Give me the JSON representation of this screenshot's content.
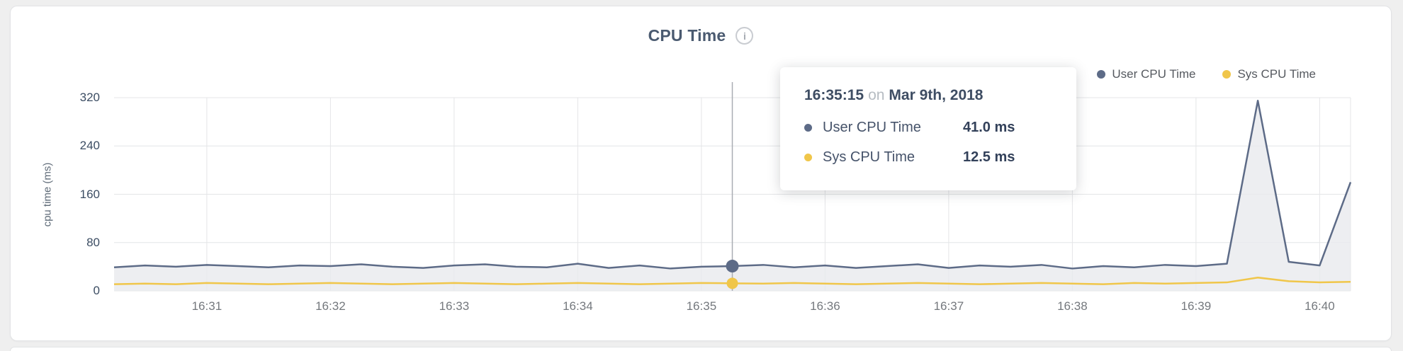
{
  "card": {
    "title": "CPU Time",
    "info_glyph": "i"
  },
  "legend": {
    "items": [
      {
        "label": "User CPU Time"
      },
      {
        "label": "Sys CPU Time"
      }
    ]
  },
  "tooltip": {
    "time": "16:35:15",
    "connector": "on",
    "date": "Mar 9th, 2018",
    "rows": [
      {
        "label": "User CPU Time",
        "value": "41.0 ms"
      },
      {
        "label": "Sys CPU Time",
        "value": "12.5 ms"
      }
    ]
  },
  "chart_data": {
    "type": "line",
    "title": "CPU Time",
    "xlabel": "",
    "ylabel": "cpu time (ms)",
    "ylim": [
      0,
      320
    ],
    "yticks": [
      0,
      80,
      160,
      240,
      320
    ],
    "xticks": [
      "16:31",
      "16:32",
      "16:33",
      "16:34",
      "16:35",
      "16:36",
      "16:37",
      "16:38",
      "16:39",
      "16:40"
    ],
    "grid": true,
    "legend_position": "top-right",
    "hover_x": "16:35:15",
    "x": [
      "16:30:15",
      "16:30:30",
      "16:30:45",
      "16:31:00",
      "16:31:15",
      "16:31:30",
      "16:31:45",
      "16:32:00",
      "16:32:15",
      "16:32:30",
      "16:32:45",
      "16:33:00",
      "16:33:15",
      "16:33:30",
      "16:33:45",
      "16:34:00",
      "16:34:15",
      "16:34:30",
      "16:34:45",
      "16:35:00",
      "16:35:15",
      "16:35:30",
      "16:35:45",
      "16:36:00",
      "16:36:15",
      "16:36:30",
      "16:36:45",
      "16:37:00",
      "16:37:15",
      "16:37:30",
      "16:37:45",
      "16:38:00",
      "16:38:15",
      "16:38:30",
      "16:38:45",
      "16:39:00",
      "16:39:15",
      "16:39:30",
      "16:39:45",
      "16:40:00",
      "16:40:15"
    ],
    "series": [
      {
        "name": "User CPU Time",
        "color": "#5d6b87",
        "fill": "#e9eaee",
        "values": [
          39,
          42,
          40,
          43,
          41,
          39,
          42,
          41,
          44,
          40,
          38,
          42,
          44,
          40,
          39,
          45,
          38,
          42,
          37,
          40,
          41,
          43,
          39,
          42,
          38,
          41,
          44,
          38,
          42,
          40,
          43,
          37,
          41,
          39,
          43,
          41,
          45,
          315,
          48,
          42,
          180
        ]
      },
      {
        "name": "Sys CPU Time",
        "color": "#f0c64a",
        "values": [
          11,
          12,
          11,
          13,
          12,
          11,
          12,
          13,
          12,
          11,
          12,
          13,
          12,
          11,
          12,
          13,
          12,
          11,
          12,
          13,
          12.5,
          12,
          13,
          12,
          11,
          12,
          13,
          12,
          11,
          12,
          13,
          12,
          11,
          13,
          12,
          13,
          14,
          22,
          16,
          14,
          15
        ]
      }
    ]
  }
}
